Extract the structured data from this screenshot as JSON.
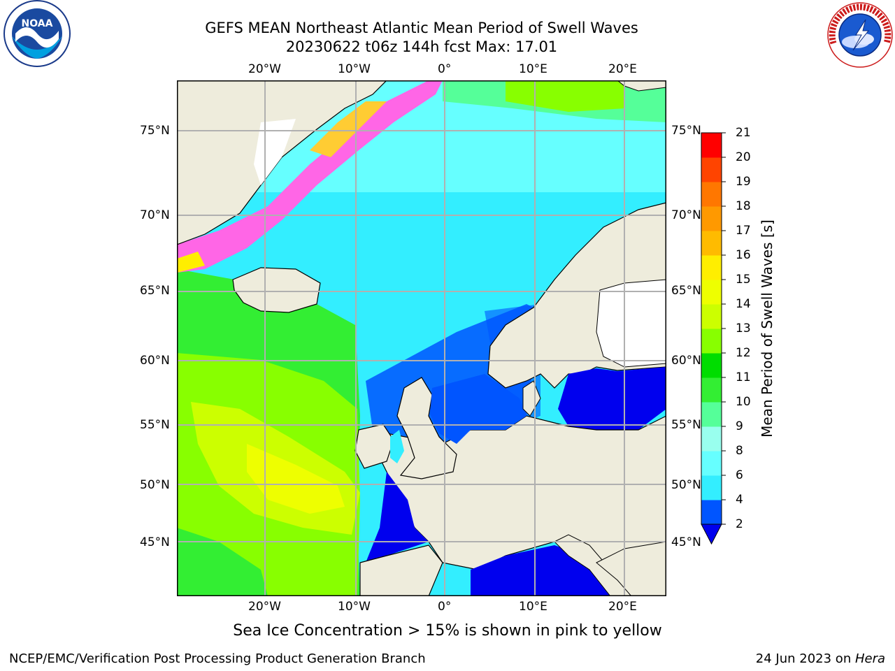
{
  "header": {
    "title_line1": "GEFS MEAN Northeast Atlantic Mean Period of Swell Waves",
    "title_line2": "20230622 t06z 144h fcst   Max: 17.01"
  },
  "logos": {
    "left": "noaa-logo",
    "right": "national-weather-service-logo"
  },
  "map": {
    "lon_labels": [
      "20°W",
      "10°W",
      "0°",
      "10°E",
      "20°E"
    ],
    "lat_labels": [
      "75°N",
      "70°N",
      "65°N",
      "60°N",
      "55°N",
      "50°N",
      "45°N"
    ],
    "colors": {
      "land": "#eeecdc",
      "ice_pink": "#ff66e6",
      "ice_yellow": "#ffcc33",
      "grid": "#b0b0b0"
    }
  },
  "colorbar": {
    "label": "Mean Period of Swell Waves [s]",
    "ticks": [
      "2",
      "4",
      "6",
      "8",
      "9",
      "10",
      "11",
      "12",
      "13",
      "14",
      "15",
      "16",
      "17",
      "18",
      "19",
      "20",
      "21"
    ],
    "colors": [
      "#0055ff",
      "#00ccff",
      "#33eeff",
      "#66ffff",
      "#99ffee",
      "#55ff99",
      "#33ee33",
      "#00dd00",
      "#88ff00",
      "#ccff00",
      "#eeff00",
      "#ffee00",
      "#ffbb00",
      "#ff9900",
      "#ff7700",
      "#ff4400",
      "#ff0000"
    ],
    "under_color": "#0000ee"
  },
  "caption": "Sea Ice Concentration > 15% is shown in pink to yellow",
  "footer": {
    "left": "NCEP/EMC/Verification Post Processing Product Generation Branch",
    "right_prefix": "24 Jun 2023 on ",
    "right_host": "Hera"
  }
}
